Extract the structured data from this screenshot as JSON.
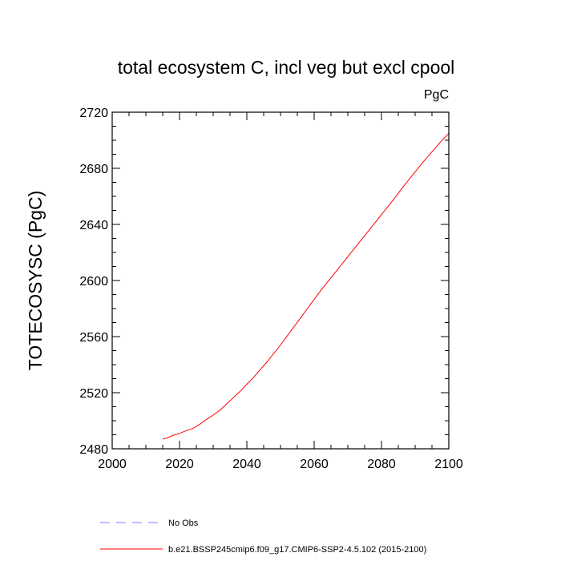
{
  "chart_data": {
    "type": "line",
    "title": "total ecosystem C, incl veg but excl cpool",
    "units_label": "PgC",
    "ylabel": "TOTECOSYSC  (PgC)",
    "xlabel": "",
    "xlim": [
      2000,
      2100
    ],
    "ylim": [
      2480,
      2720
    ],
    "xticks": [
      "2000",
      "2020",
      "2040",
      "2060",
      "2080",
      "2100"
    ],
    "yticks": [
      "2480",
      "2520",
      "2560",
      "2600",
      "2640",
      "2680",
      "2720"
    ],
    "grid": false,
    "legend_position": "bottom-left",
    "series": [
      {
        "name": "No Obs",
        "color": "#8080ff",
        "style": "dashed",
        "x": [],
        "y": []
      },
      {
        "name": "b.e21.BSSP245cmip6.f09_g17.CMIP6-SSP2-4.5.102 (2015-2100)",
        "color": "#ff0000",
        "style": "solid",
        "x": [
          2015,
          2016,
          2018,
          2020,
          2022,
          2024,
          2026,
          2028,
          2030,
          2032,
          2034,
          2036,
          2038,
          2040,
          2042,
          2044,
          2046,
          2048,
          2050,
          2052,
          2054,
          2056,
          2058,
          2060,
          2062,
          2064,
          2066,
          2068,
          2070,
          2072,
          2074,
          2076,
          2078,
          2080,
          2082,
          2084,
          2086,
          2088,
          2090,
          2092,
          2094,
          2096,
          2098,
          2100
        ],
        "y": [
          2487,
          2487.5,
          2489.5,
          2491,
          2493,
          2494.5,
          2497.5,
          2501,
          2504,
          2507.5,
          2512,
          2516.5,
          2521,
          2526,
          2531,
          2536.5,
          2542,
          2548,
          2554,
          2560.5,
          2567,
          2573.5,
          2580,
          2586.5,
          2593,
          2599,
          2605,
          2611,
          2617,
          2623,
          2629,
          2635,
          2641,
          2647,
          2653,
          2659,
          2665.5,
          2671.5,
          2677.5,
          2683.5,
          2689,
          2694.5,
          2700,
          2705
        ]
      }
    ]
  }
}
